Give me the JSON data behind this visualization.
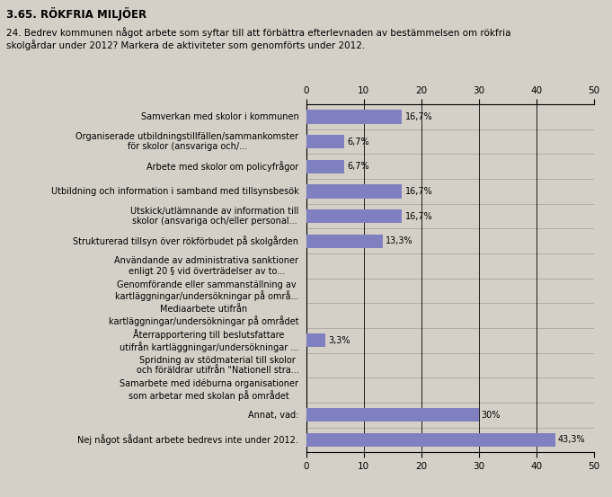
{
  "title": "3.65. RÖKFRIA MILJÖER",
  "subtitle": "24. Bedrev kommunen något arbete som syftar till att förbättra efterlevnaden av bestämmelsen om rökfria\nskolgårdar under 2012? Markera de aktiviteter som genomförts under 2012.",
  "categories": [
    "Samverkan med skolor i kommunen",
    "Organiserade utbildningstillfällen/sammankomster\nför skolor (ansvariga och/...",
    "Arbete med skolor om policyfrågor",
    "Utbildning och information i samband med tillsynsbesök",
    "Utskick/utlämnande av information till\nskolor (ansvariga och/eller personal...",
    "Strukturerad tillsyn över rökförbudet på skolgården",
    "Användande av administrativa sanktioner\nenligt 20 § vid överträdelser av to...",
    "Genomförande eller sammanställning av\nkartläggningar/undersökningar på områ...",
    "Mediaarbete utifrån\nkartläggningar/undersökningar på området",
    "Återrapportering till beslutsfattare\nutifrån kartläggningar/undersökningar ...",
    "Spridning av stödmaterial till skolor\noch föräldrar utifrån \"Nationell stra...",
    "Samarbete med idéburna organisationer\nsom arbetar med skolan på området",
    "Annat, vad:",
    "Nej något sådant arbete bedrevs inte under 2012."
  ],
  "values": [
    16.7,
    6.7,
    6.7,
    16.7,
    16.7,
    13.3,
    0,
    0,
    0,
    3.3,
    0,
    0,
    30,
    43.3
  ],
  "labels": [
    "16,7%",
    "6,7%",
    "6,7%",
    "16,7%",
    "16,7%",
    "13,3%",
    "",
    "",
    "",
    "3,3%",
    "",
    "",
    "30%",
    "43,3%"
  ],
  "bar_color": "#8080c0",
  "bg_color": "#d4d0c8",
  "plot_bg_color": "#d4d0c8",
  "xlim": [
    0,
    50
  ],
  "xticks": [
    0,
    10,
    20,
    30,
    40,
    50
  ],
  "title_fontsize": 8.5,
  "subtitle_fontsize": 7.5,
  "label_fontsize": 7,
  "cat_fontsize": 7,
  "tick_fontsize": 7.5,
  "bar_height": 0.55
}
